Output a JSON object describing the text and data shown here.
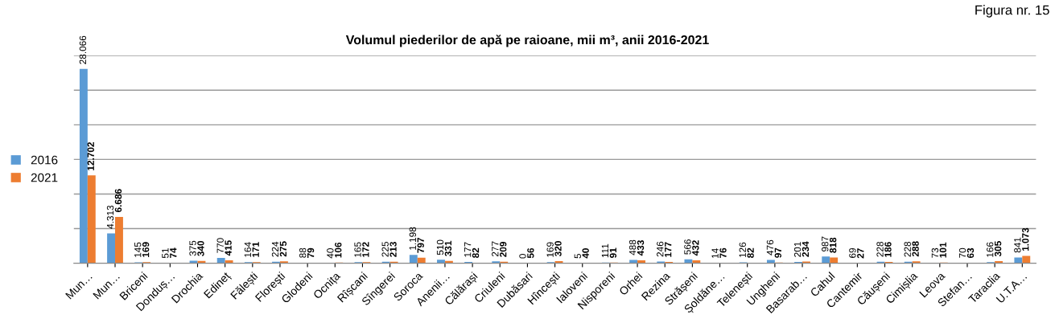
{
  "chart_data": {
    "type": "bar",
    "title": "Volumul piederilor de apă pe raioane, mii m³, anii 2016-2021",
    "annotations": [
      "Figura nr. 15"
    ],
    "categories": [
      "Mun…",
      "Mun…",
      "Briceni",
      "Donduș…",
      "Drochia",
      "Edineț",
      "Fălești",
      "Florești",
      "Glodeni",
      "Ocnița",
      "Rîșcani",
      "Sîngerei",
      "Soroca",
      "Anenii…",
      "Călărași",
      "Criuleni",
      "Dubăsari",
      "Hîncești",
      "Ialoveni",
      "Nisporeni",
      "Orhei",
      "Rezina",
      "Strășeni",
      "Șoldăne…",
      "Telenești",
      "Ungheni",
      "Basarab…",
      "Cahul",
      "Cantemir",
      "Căușeni",
      "Cimișlia",
      "Leova",
      "Stefan…",
      "Taraclia",
      "U.T.A…"
    ],
    "series": [
      {
        "name": "2016",
        "color": "#5b9bd5",
        "values": [
          28066,
          4313,
          145,
          51,
          375,
          770,
          164,
          224,
          88,
          40,
          165,
          225,
          1198,
          510,
          177,
          277,
          0,
          169,
          5,
          111,
          488,
          246,
          566,
          14,
          126,
          476,
          201,
          987,
          69,
          228,
          228,
          73,
          70,
          166,
          841
        ],
        "value_labels": [
          "28.066",
          "4.313",
          "145",
          "51",
          "375",
          "770",
          "164",
          "224",
          "88",
          "40",
          "165",
          "225",
          "1.198",
          "510",
          "177",
          "277",
          "0",
          "169",
          "5",
          "111",
          "488",
          "246",
          "566",
          "14",
          "126",
          "476",
          "201",
          "987",
          "69",
          "228",
          "228",
          "73",
          "70",
          "166",
          "841"
        ]
      },
      {
        "name": "2021",
        "color": "#ed7d31",
        "values": [
          12702,
          6686,
          169,
          74,
          340,
          415,
          171,
          275,
          79,
          106,
          172,
          213,
          797,
          331,
          82,
          209,
          56,
          320,
          40,
          91,
          433,
          177,
          432,
          76,
          82,
          97,
          234,
          818,
          27,
          186,
          288,
          101,
          63,
          305,
          1073
        ],
        "value_labels": [
          "12.702",
          "6.686",
          "169",
          "74",
          "340",
          "415",
          "171",
          "275",
          "79",
          "106",
          "172",
          "213",
          "797",
          "331",
          "82",
          "209",
          "56",
          "320",
          "40",
          "91",
          "433",
          "177",
          "432",
          "76",
          "82",
          "97",
          "234",
          "818",
          "27",
          "186",
          "288",
          "101",
          "63",
          "305",
          "1.073"
        ]
      }
    ],
    "ylim": [
      0,
      30000
    ],
    "yticks": [
      {
        "value": 0,
        "label": null
      },
      {
        "value": 5000,
        "label": null
      },
      {
        "value": 10000,
        "label": null
      },
      {
        "value": 15000,
        "label": null
      },
      {
        "value": 20000,
        "label": null
      },
      {
        "value": 25000,
        "label": null
      },
      {
        "value": 30000,
        "label": null
      }
    ],
    "grid": "y",
    "legend": "left",
    "tick_labels": "x"
  }
}
